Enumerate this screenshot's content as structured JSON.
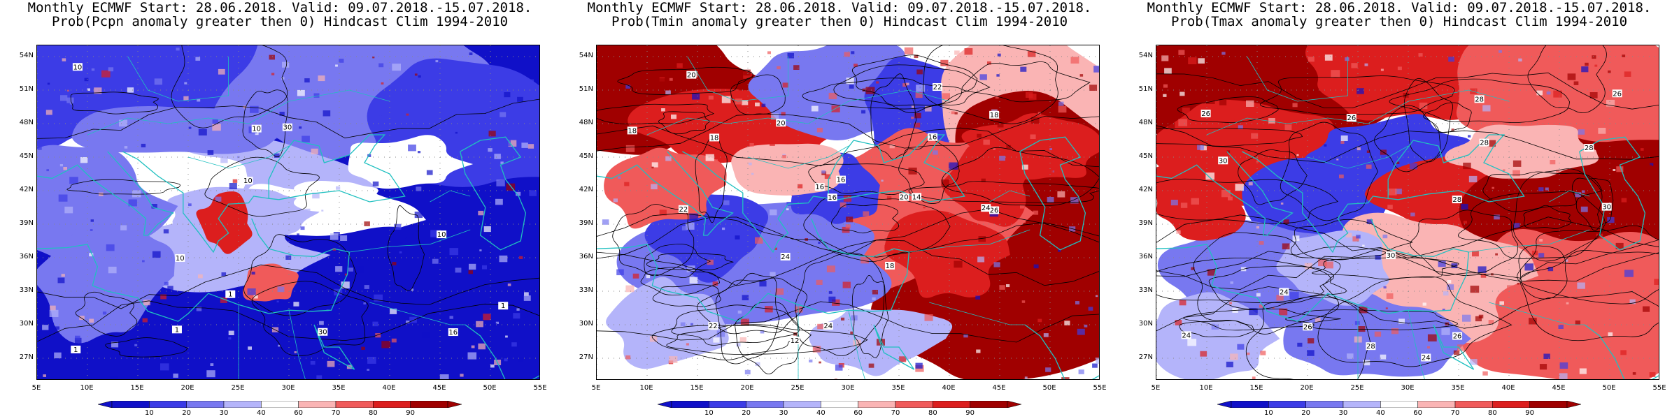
{
  "panels": [
    {
      "title_line1": "Monthly ECMWF Start: 28.06.2018. Valid: 09.07.2018.-15.07.2018.",
      "title_line2": "Prob(Pcpn anomaly greater then 0) Hindcast Clim 1994-2010",
      "variable": "Pcpn",
      "contour_labels": [
        "10",
        "16",
        "10",
        "30",
        "10",
        "1",
        "30",
        "1",
        "10",
        "1",
        "10",
        "1"
      ]
    },
    {
      "title_line1": "Monthly ECMWF Start: 28.06.2018. Valid: 09.07.2018.-15.07.2018.",
      "title_line2": "Prob(Tmin anomaly greater then 0) Hindcast Clim 1994-2010",
      "variable": "Tmin",
      "contour_labels": [
        "16",
        "16",
        "14",
        "18",
        "16",
        "24",
        "18",
        "20",
        "24",
        "22",
        "26",
        "22",
        "20",
        "18",
        "24",
        "12",
        "16",
        "18",
        "20",
        "22"
      ]
    },
    {
      "title_line1": "Monthly ECMWF Start: 28.06.2018. Valid: 09.07.2018.-15.07.2018.",
      "title_line2": "Prob(Tmax anomaly greater then 0) Hindcast Clim 1994-2010",
      "variable": "Tmax",
      "contour_labels": [
        "26",
        "24",
        "26",
        "28",
        "30",
        "24",
        "28",
        "26",
        "30",
        "28",
        "24",
        "26",
        "28",
        "30",
        "26",
        "28"
      ]
    }
  ],
  "lat_ticks": [
    "54N",
    "51N",
    "48N",
    "45N",
    "42N",
    "39N",
    "36N",
    "33N",
    "30N",
    "27N"
  ],
  "lat_values": [
    54,
    51,
    48,
    45,
    42,
    39,
    36,
    33,
    30,
    27
  ],
  "lon_ticks": [
    "5E",
    "10E",
    "15E",
    "20E",
    "25E",
    "30E",
    "35E",
    "40E",
    "45E",
    "50E",
    "55E"
  ],
  "lon_values": [
    5,
    10,
    15,
    20,
    25,
    30,
    35,
    40,
    45,
    50,
    55
  ],
  "map_extent": {
    "lon": [
      5,
      55
    ],
    "lat": [
      25,
      55
    ]
  },
  "colorbar": {
    "labels": [
      "10",
      "20",
      "30",
      "40",
      "60",
      "70",
      "80",
      "90"
    ],
    "colors": [
      "#1010c8",
      "#3c3ce6",
      "#7878f0",
      "#b4b4fa",
      "#ffffff",
      "#fab4b4",
      "#f05a5a",
      "#dc1e1e",
      "#a00000"
    ]
  },
  "colors": {
    "coastline": "#20c0c0",
    "contour": "#000000",
    "gridline": "#888888"
  }
}
